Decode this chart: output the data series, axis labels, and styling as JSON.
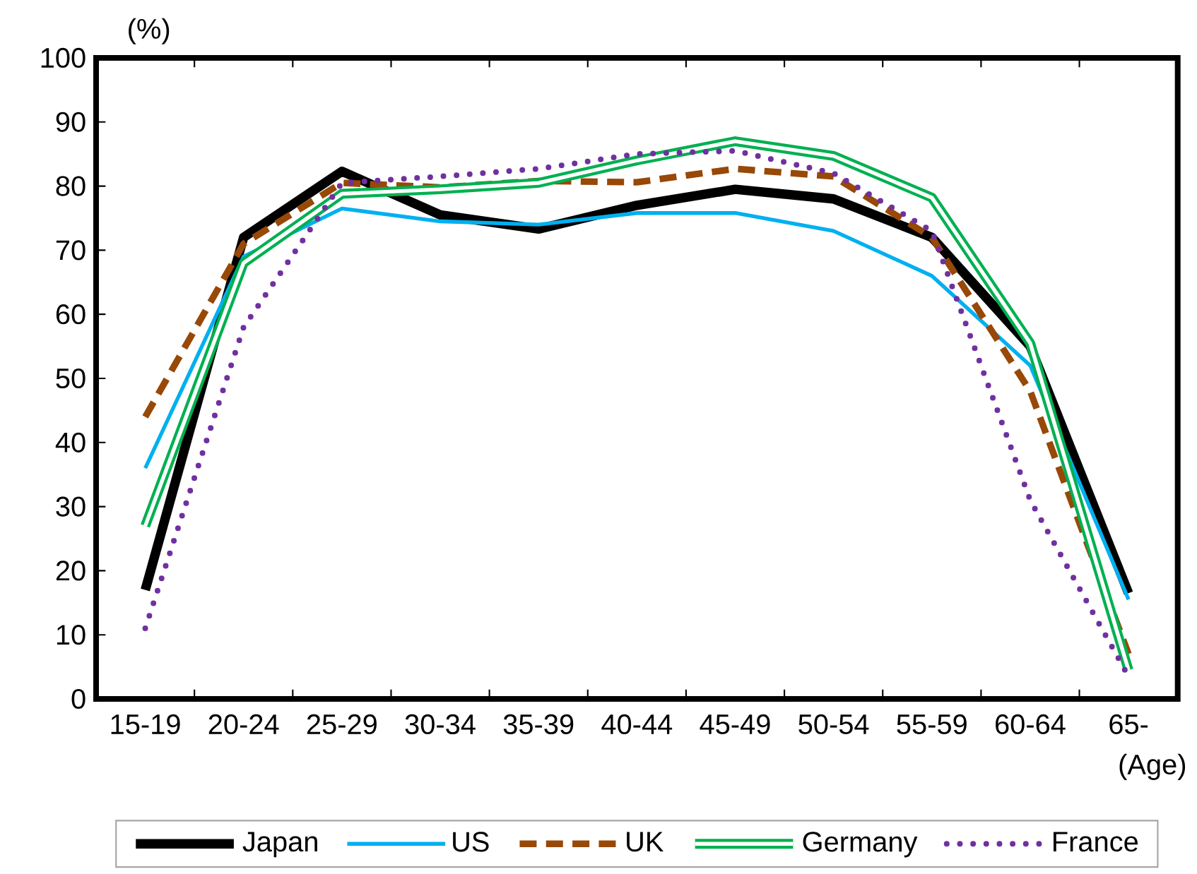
{
  "chart_data": {
    "type": "line",
    "ylabel": "(%)",
    "xlabel": "(Age)",
    "categories": [
      "15-19",
      "20-24",
      "25-29",
      "30-34",
      "35-39",
      "40-44",
      "45-49",
      "50-54",
      "55-59",
      "60-64",
      "65-"
    ],
    "ylim": [
      0,
      100
    ],
    "yticks": [
      0,
      10,
      20,
      30,
      40,
      50,
      60,
      70,
      80,
      90,
      100
    ],
    "grid": false,
    "legend": "bottom",
    "marker": "none",
    "series": [
      {
        "name": "Japan",
        "color": "#000000",
        "line_style": "solid",
        "values": [
          17,
          72,
          82.3,
          75.5,
          73.3,
          77,
          79.5,
          78,
          72,
          55,
          16.5
        ]
      },
      {
        "name": "US",
        "color": "#00b0f0",
        "line_style": "solid",
        "values": [
          36,
          69,
          76.5,
          74.5,
          74,
          75.8,
          75.8,
          73,
          66,
          52,
          15.5
        ]
      },
      {
        "name": "UK",
        "color": "#984807",
        "line_style": "dashed",
        "values": [
          44,
          71,
          80.5,
          79.8,
          80.8,
          80.6,
          82.7,
          81.5,
          72,
          48,
          7
        ]
      },
      {
        "name": "Germany",
        "color": "#00b050",
        "line_style": "solid",
        "values": [
          27,
          68,
          78.8,
          79.5,
          80.5,
          84,
          87,
          84.7,
          78.2,
          55.5,
          4.5
        ]
      },
      {
        "name": "France",
        "color": "#7030a0",
        "line_style": "dotted",
        "values": [
          11,
          58,
          80.5,
          81.5,
          82.7,
          85,
          85.5,
          82,
          73,
          31,
          3.5
        ]
      }
    ]
  }
}
